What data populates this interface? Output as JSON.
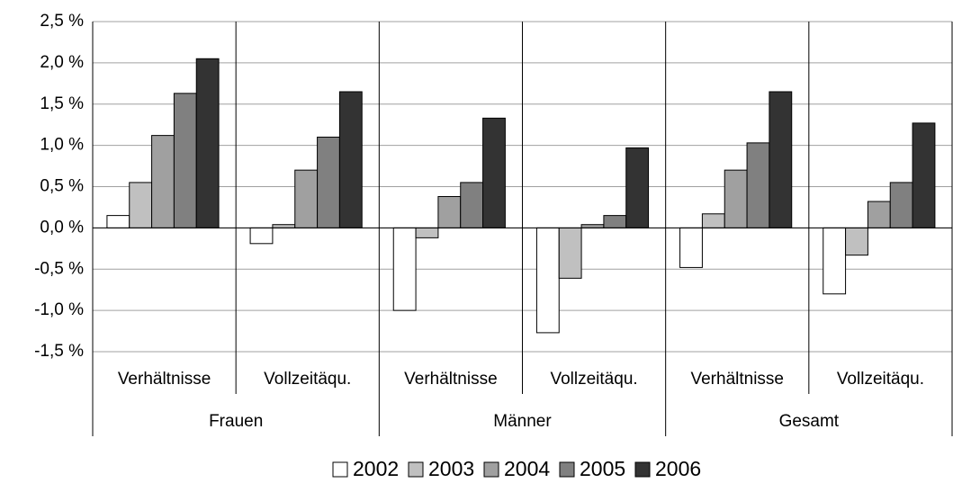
{
  "chart_data": {
    "type": "bar",
    "categories": [
      "Verhältnisse",
      "Vollzeitäqu.",
      "Verhältnisse",
      "Vollzeitäqu.",
      "Verhältnisse",
      "Vollzeitäqu."
    ],
    "groups": [
      "Frauen",
      "Männer",
      "Gesamt"
    ],
    "series": [
      {
        "name": "2002",
        "color": "#ffffff",
        "values": [
          0.15,
          -0.19,
          -1.0,
          -1.27,
          -0.48,
          -0.8
        ]
      },
      {
        "name": "2003",
        "color": "#c0c0c0",
        "values": [
          0.55,
          0.04,
          -0.12,
          -0.61,
          0.17,
          -0.33
        ]
      },
      {
        "name": "2004",
        "color": "#a0a0a0",
        "values": [
          1.12,
          0.7,
          0.38,
          0.04,
          0.7,
          0.32
        ]
      },
      {
        "name": "2005",
        "color": "#808080",
        "values": [
          1.63,
          1.1,
          0.55,
          0.15,
          1.03,
          0.55
        ]
      },
      {
        "name": "2006",
        "color": "#333333",
        "values": [
          2.05,
          1.65,
          1.33,
          0.97,
          1.65,
          1.27
        ]
      }
    ],
    "ylim": [
      -1.5,
      2.5
    ],
    "yticks": [
      {
        "value": -1.5,
        "label": "-1,5 %"
      },
      {
        "value": -1.0,
        "label": "-1,0 %"
      },
      {
        "value": -0.5,
        "label": "-0,5 %"
      },
      {
        "value": 0,
        "label": "0,0 %"
      },
      {
        "value": 0.5,
        "label": "0,5 %"
      },
      {
        "value": 1.0,
        "label": "1,0 %"
      },
      {
        "value": 1.5,
        "label": "1,5 %"
      },
      {
        "value": 2.0,
        "label": "2,0 %"
      },
      {
        "value": 2.5,
        "label": "2,5 %"
      }
    ],
    "grid": true,
    "legend": "bottom"
  }
}
